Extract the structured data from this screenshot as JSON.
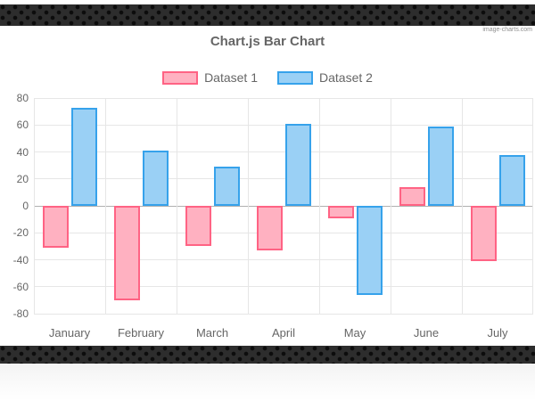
{
  "watermark": {
    "text": "image-charts.com"
  },
  "chart_data": {
    "type": "bar",
    "title": "Chart.js Bar Chart",
    "categories": [
      "January",
      "February",
      "March",
      "April",
      "May",
      "June",
      "July"
    ],
    "series": [
      {
        "name": "Dataset 1",
        "fill": "#ffb1c1",
        "border": "#ff6384",
        "values": [
          -31,
          -70,
          -30,
          -33,
          -9,
          14,
          -41
        ]
      },
      {
        "name": "Dataset 2",
        "fill": "#9ad0f5",
        "border": "#36a2eb",
        "values": [
          73,
          41,
          29,
          61,
          -66,
          59,
          38
        ]
      }
    ],
    "ylim": [
      -80,
      80
    ],
    "yticks": [
      80,
      60,
      40,
      20,
      0,
      -20,
      -40,
      -60,
      -80
    ],
    "xlabel": "",
    "ylabel": "",
    "grid": true,
    "legend_position": "top",
    "colors": {
      "text": "#666666",
      "grid": "#e6e6e6",
      "zero_line": "#b0b0b0",
      "band_background": "#2d2d2d",
      "band_dots": "#0c0c0c"
    }
  }
}
